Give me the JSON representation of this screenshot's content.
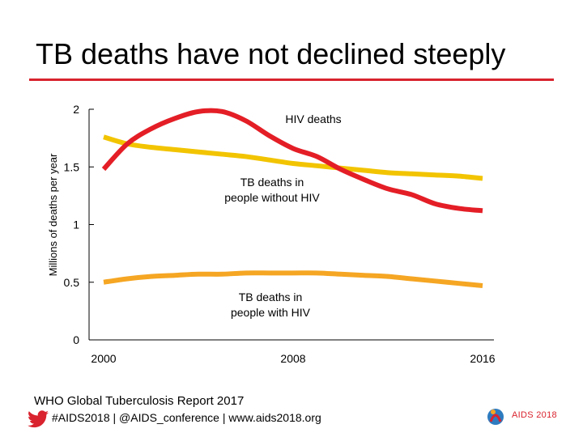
{
  "slide": {
    "title": "TB deaths have not declined steeply",
    "source": "WHO Global Tuberculosis Report 2017",
    "social": "#AIDS2018 | @AIDS_conference | www.aids2018.org",
    "logo_text": "AIDS 2018",
    "accent_color": "#d9232e"
  },
  "chart_data": {
    "type": "line",
    "ylabel": "Millions of deaths per year",
    "xlabel": "",
    "xlim": [
      2000,
      2016
    ],
    "ylim": [
      0,
      2
    ],
    "x_ticks": [
      "2000",
      "2008",
      "2016"
    ],
    "x_tick_values": [
      2000,
      2008,
      2016
    ],
    "y_ticks": [
      "0",
      "0.5",
      "1",
      "1.5",
      "2"
    ],
    "y_tick_values": [
      0,
      0.5,
      1,
      1.5,
      2
    ],
    "grid": false,
    "legend": "none",
    "series": [
      {
        "name": "HIV deaths",
        "color": "#e41e26",
        "x": [
          2000,
          2001,
          2002,
          2003,
          2004,
          2005,
          2006,
          2007,
          2008,
          2009,
          2010,
          2011,
          2012,
          2013,
          2014,
          2015,
          2016
        ],
        "y": [
          1.48,
          1.7,
          1.83,
          1.92,
          1.98,
          1.98,
          1.9,
          1.77,
          1.66,
          1.59,
          1.48,
          1.39,
          1.31,
          1.26,
          1.18,
          1.14,
          1.12
        ]
      },
      {
        "name": "TB deaths in people without HIV",
        "color": "#f2c400",
        "x": [
          2000,
          2001,
          2002,
          2003,
          2004,
          2005,
          2006,
          2007,
          2008,
          2009,
          2010,
          2011,
          2012,
          2013,
          2014,
          2015,
          2016
        ],
        "y": [
          1.76,
          1.7,
          1.67,
          1.65,
          1.63,
          1.61,
          1.59,
          1.56,
          1.53,
          1.51,
          1.49,
          1.47,
          1.45,
          1.44,
          1.43,
          1.42,
          1.4
        ]
      },
      {
        "name": "TB deaths in people with HIV",
        "color": "#f5a623",
        "x": [
          2000,
          2001,
          2002,
          2003,
          2004,
          2005,
          2006,
          2007,
          2008,
          2009,
          2010,
          2011,
          2012,
          2013,
          2014,
          2015,
          2016
        ],
        "y": [
          0.5,
          0.53,
          0.55,
          0.56,
          0.57,
          0.57,
          0.58,
          0.58,
          0.58,
          0.58,
          0.57,
          0.56,
          0.55,
          0.53,
          0.51,
          0.49,
          0.47
        ]
      }
    ],
    "annotations": [
      {
        "text": "HIV deaths",
        "series": 0
      },
      {
        "text": "TB deaths in\npeople without HIV",
        "series": 1
      },
      {
        "text": "TB deaths in\npeople with HIV",
        "series": 2
      }
    ]
  }
}
